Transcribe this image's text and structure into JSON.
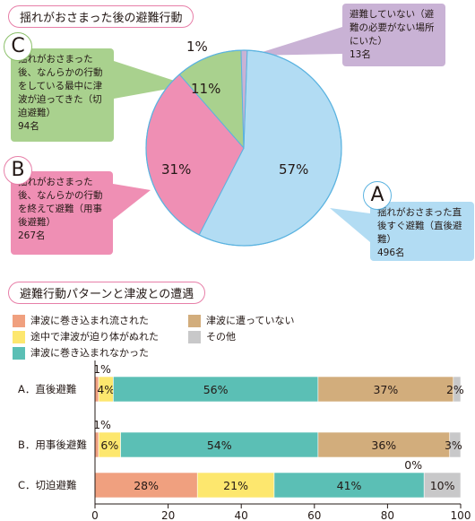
{
  "pie": {
    "title": "揺れがおさまった後の避難行動",
    "pct_a": "57%",
    "pct_b": "31%",
    "pct_c": "11%",
    "pct_n": "1%",
    "callouts": {
      "c": {
        "letter": "C",
        "text": "揺れがおさまった後、なんらかの行動をしている最中に津波が迫ってきた（切迫避難）",
        "count": "94名"
      },
      "b": {
        "letter": "B",
        "text": "揺れがおさまった後、なんらかの行動を終えて避難（用事後避難）",
        "count": "267名"
      },
      "a": {
        "letter": "A",
        "text": "揺れがおさまった直後すぐ避難（直後避難）",
        "count": "496名"
      },
      "n": {
        "text": "避難していない（避難の必要がない場所にいた）",
        "count": "13名"
      }
    }
  },
  "bar": {
    "title": "避難行動パターンと津波との遭遇",
    "legend": [
      {
        "label": "津波に巻き込まれ流された",
        "color": "#f0a07f"
      },
      {
        "label": "途中で津波が迫り体がぬれた",
        "color": "#fde76e"
      },
      {
        "label": "津波に巻き込まれなかった",
        "color": "#5bbfb5"
      },
      {
        "label": "津波に遭っていない",
        "color": "#d2ad7c"
      },
      {
        "label": "その他",
        "color": "#c8c8c9"
      }
    ]
  },
  "colors": {
    "a": "#b2dcf3",
    "b": "#ef8fb4",
    "c": "#a9d18e",
    "n": "#c9b2d5",
    "pie_edge": "#5bb3e0"
  },
  "chart_data": [
    {
      "type": "pie",
      "title": "揺れがおさまった後の避難行動",
      "slices": [
        {
          "label": "A",
          "value": 57,
          "count": 496
        },
        {
          "label": "B",
          "value": 31,
          "count": 267
        },
        {
          "label": "C",
          "value": 11,
          "count": 94
        },
        {
          "label": "避難していない",
          "value": 1,
          "count": 13
        }
      ]
    },
    {
      "type": "bar",
      "orientation": "horizontal",
      "stacked": true,
      "title": "避難行動パターンと津波との遭遇",
      "categories": [
        "A．直後避難",
        "B．用事後避難",
        "C．切迫避難"
      ],
      "series": [
        {
          "name": "津波に巻き込まれ流された",
          "values": [
            1,
            1,
            28
          ],
          "labels": [
            "1%",
            "1%",
            "28%"
          ]
        },
        {
          "name": "途中で津波が迫り体がぬれた",
          "values": [
            4,
            6,
            21
          ],
          "labels": [
            "4%",
            "6%",
            "21%"
          ]
        },
        {
          "name": "津波に巻き込まれなかった",
          "values": [
            56,
            54,
            41
          ],
          "labels": [
            "56%",
            "54%",
            "41%"
          ]
        },
        {
          "name": "津波に遭っていない",
          "values": [
            37,
            36,
            0
          ],
          "labels": [
            "37%",
            "36%",
            "0%"
          ]
        },
        {
          "name": "その他",
          "values": [
            2,
            3,
            10
          ],
          "labels": [
            "2%",
            "3%",
            "10%"
          ]
        }
      ],
      "xlim": [
        0,
        100
      ],
      "xticks": [
        "0",
        "20",
        "40",
        "60",
        "80",
        "100"
      ],
      "grid": false
    }
  ]
}
